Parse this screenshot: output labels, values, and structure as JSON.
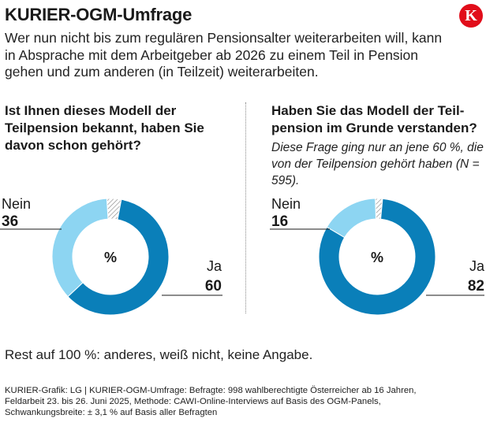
{
  "header": {
    "title": "KURIER-OGM-Umfrage",
    "subtitle": "Wer nun nicht bis zum regulären Pensionsalter weiterarbeiten will, kann in Absprache mit dem Arbeitgeber ab 2026 zu einem Teil in Pension gehen und zum anderen (in Teilzeit) weiterarbeiten.",
    "logo_letter": "K"
  },
  "colors": {
    "ja": "#0a7fb9",
    "nein": "#8dd5f2",
    "rest_hatch": "#8a8a8a",
    "logo": "#e10d1a"
  },
  "chart_data": [
    {
      "type": "pie",
      "donut": true,
      "title": "Ist Ihnen dieses Modell der Teilpension bekannt, haben Sie davon schon gehört?",
      "center_label": "%",
      "slices": [
        {
          "label": "Ja",
          "value": 60,
          "color": "#0a7fb9"
        },
        {
          "label": "Nein",
          "value": 36,
          "color": "#8dd5f2"
        },
        {
          "label": "Rest",
          "value": 4,
          "color": "hatch"
        }
      ]
    },
    {
      "type": "pie",
      "donut": true,
      "title": "Haben Sie das Modell der Teil-pension im Grunde verstanden?",
      "note": "Diese Frage ging nur an jene 60 %, die von der Teilpension gehört haben (N = 595).",
      "center_label": "%",
      "slices": [
        {
          "label": "Ja",
          "value": 82,
          "color": "#0a7fb9"
        },
        {
          "label": "Nein",
          "value": 16,
          "color": "#8dd5f2"
        },
        {
          "label": "Rest",
          "value": 2,
          "color": "hatch"
        }
      ]
    }
  ],
  "rest_text": "Rest auf 100 %: anderes, weiß nicht, keine Angabe.",
  "footer_lines": [
    "KURIER-Grafik: LG | KURIER-OGM-Umfrage: Befragte: 998 wahlberechtigte Österreicher ab 16 Jahren,",
    "Feldarbeit 23. bis 26. Juni 2025,  Methode: CAWI-Online-Interviews auf Basis des OGM-Panels,",
    "Schwankungsbreite: ± 3,1 % auf Basis aller Befragten"
  ]
}
